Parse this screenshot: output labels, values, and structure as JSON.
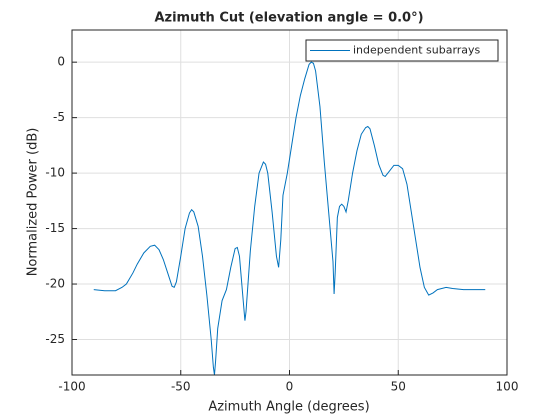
{
  "chart_data": {
    "type": "line",
    "title": "Azimuth Cut (elevation angle = 0.0°)",
    "xlabel": "Azimuth Angle (degrees)",
    "ylabel": "Normalized Power (dB)",
    "x": [
      -90,
      -85,
      -80,
      -77,
      -75,
      -72,
      -70,
      -67,
      -64,
      -62,
      -60,
      -58,
      -56,
      -54,
      -53,
      -52,
      -50,
      -48,
      -46,
      -45,
      -44,
      -42,
      -40,
      -38,
      -36,
      -35,
      -34.5,
      -34,
      -33,
      -31,
      -29,
      -27,
      -25,
      -24,
      -23,
      -21.5,
      -20.5,
      -20,
      -18,
      -16,
      -14,
      -12,
      -11,
      -10,
      -8,
      -6,
      -5,
      -4,
      -3,
      -1,
      1,
      3,
      5,
      7,
      9,
      10,
      11,
      12,
      14,
      16,
      18,
      20,
      20.5,
      21,
      22,
      23,
      24,
      25,
      26,
      27,
      29,
      31,
      33,
      35,
      36,
      37,
      39,
      41,
      43,
      44,
      46,
      48,
      50,
      52,
      54,
      56,
      58,
      60,
      62,
      64,
      66,
      68,
      70,
      72,
      75,
      80,
      85,
      90
    ],
    "series": [
      {
        "name": "independent subarrays",
        "color": "#0072bd",
        "values": [
          -20.5,
          -20.6,
          -20.6,
          -20.3,
          -20,
          -19,
          -18.2,
          -17.2,
          -16.6,
          -16.5,
          -16.9,
          -17.8,
          -19,
          -20.2,
          -20.3,
          -19.8,
          -17.5,
          -15,
          -13.6,
          -13.3,
          -13.5,
          -14.8,
          -17.5,
          -21,
          -25,
          -27.5,
          -28.2,
          -27,
          -24,
          -21.5,
          -20.5,
          -18.5,
          -16.8,
          -16.7,
          -17.5,
          -21,
          -23.3,
          -22.5,
          -17,
          -13,
          -10,
          -9,
          -9.2,
          -10,
          -13.5,
          -17.5,
          -18.5,
          -16,
          -12,
          -10,
          -7.5,
          -5,
          -3,
          -1.5,
          -0.2,
          0,
          -0.1,
          -0.8,
          -4,
          -9,
          -13.5,
          -18,
          -20.9,
          -19,
          -14,
          -13,
          -12.8,
          -13,
          -13.5,
          -12.5,
          -10,
          -8,
          -6.5,
          -5.9,
          -5.8,
          -6,
          -7.5,
          -9.2,
          -10.2,
          -10.3,
          -9.8,
          -9.3,
          -9.3,
          -9.6,
          -11,
          -13.5,
          -16,
          -18.5,
          -20.3,
          -21,
          -20.8,
          -20.5,
          -20.4,
          -20.3,
          -20.4,
          -20.5,
          -20.5,
          -20.5
        ]
      }
    ],
    "xlim": [
      -100,
      100
    ],
    "xticks": [
      -100,
      -50,
      0,
      50,
      100
    ],
    "ylim": [
      -28.2,
      2.9
    ],
    "yticks": [
      -25,
      -20,
      -15,
      -10,
      -5,
      0
    ],
    "grid": true,
    "legend": "northeast"
  }
}
